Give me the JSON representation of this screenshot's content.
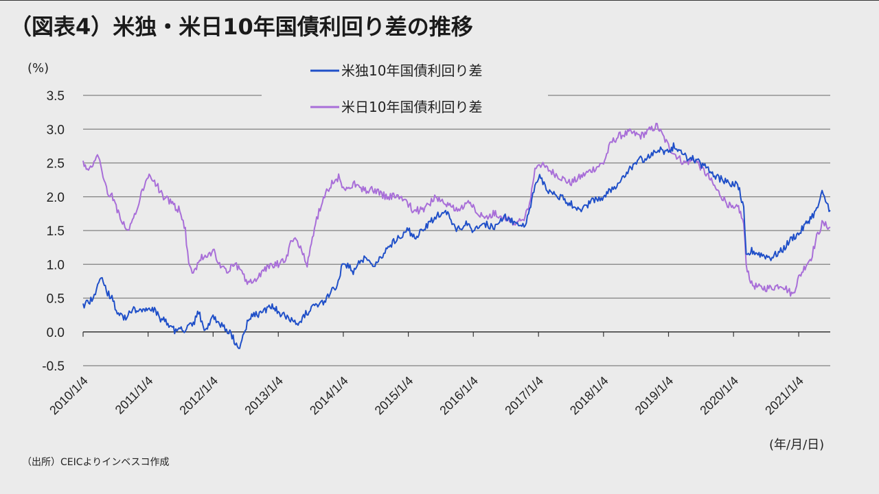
{
  "title": "（図表4）米独・米日10年国債利回り差の推移",
  "source": "（出所）CEICよりインベスコ作成",
  "chart_data": {
    "type": "line",
    "y_unit": "(%)",
    "x_unit": "(年/月/日)",
    "ylim": [
      -0.5,
      3.5
    ],
    "y_ticks": [
      "3.5",
      "3.0",
      "2.5",
      "2.0",
      "1.5",
      "1.0",
      "0.5",
      "0.0",
      "-0.5"
    ],
    "negative_tick_color": "#e02020",
    "x_ticks": [
      "2010/1/4",
      "2011/1/4",
      "2012/1/4",
      "2013/1/4",
      "2014/1/4",
      "2015/1/4",
      "2016/1/4",
      "2017/1/4",
      "2018/1/4",
      "2019/1/4",
      "2020/1/4",
      "2021/1/4"
    ],
    "x_range": [
      "2010/1/4",
      "2021/6/30"
    ],
    "grid": true,
    "legend_position": "top-center",
    "series": [
      {
        "name": "米独10年国債利回り差",
        "color": "#1f4fc8",
        "x": [
          "2010/1/4",
          "2010/3/1",
          "2010/4/15",
          "2010/5/15",
          "2010/6/15",
          "2010/7/15",
          "2010/9/1",
          "2010/10/15",
          "2010/12/1",
          "2011/1/4",
          "2011/2/15",
          "2011/3/15",
          "2011/5/1",
          "2011/6/15",
          "2011/8/1",
          "2011/9/15",
          "2011/10/15",
          "2011/11/15",
          "2011/12/15",
          "2012/1/4",
          "2012/2/15",
          "2012/4/1",
          "2012/6/1",
          "2012/7/20",
          "2012/9/1",
          "2012/10/15",
          "2012/12/1",
          "2013/1/4",
          "2013/3/1",
          "2013/5/1",
          "2013/6/1",
          "2013/7/15",
          "2013/9/1",
          "2013/10/15",
          "2013/12/1",
          "2014/1/4",
          "2014/3/1",
          "2014/5/1",
          "2014/7/1",
          "2014/9/1",
          "2014/11/1",
          "2015/1/4",
          "2015/2/15",
          "2015/4/15",
          "2015/6/1",
          "2015/8/1",
          "2015/10/1",
          "2015/12/1",
          "2016/1/4",
          "2016/3/1",
          "2016/5/1",
          "2016/7/1",
          "2016/9/1",
          "2016/10/15",
          "2016/11/15",
          "2016/12/15",
          "2017/1/4",
          "2017/3/1",
          "2017/5/1",
          "2017/7/1",
          "2017/9/1",
          "2017/11/1",
          "2018/1/4",
          "2018/2/15",
          "2018/4/1",
          "2018/6/1",
          "2018/8/1",
          "2018/10/1",
          "2018/11/1",
          "2019/1/4",
          "2019/2/1",
          "2019/4/1",
          "2019/6/1",
          "2019/8/15",
          "2019/10/1",
          "2019/12/1",
          "2020/1/4",
          "2020/2/1",
          "2020/3/1",
          "2020/3/15",
          "2020/4/15",
          "2020/6/1",
          "2020/8/1",
          "2020/10/1",
          "2020/12/1",
          "2021/1/4",
          "2021/2/15",
          "2021/3/15",
          "2021/4/15",
          "2021/5/15",
          "2021/6/30"
        ],
        "values": [
          0.4,
          0.5,
          0.8,
          0.6,
          0.5,
          0.3,
          0.2,
          0.35,
          0.3,
          0.35,
          0.3,
          0.2,
          0.1,
          0.0,
          0.05,
          0.1,
          0.3,
          0.05,
          0.1,
          0.25,
          0.1,
          0.0,
          -0.25,
          0.2,
          0.25,
          0.3,
          0.4,
          0.3,
          0.2,
          0.15,
          0.25,
          0.35,
          0.4,
          0.55,
          0.7,
          1.05,
          0.9,
          1.1,
          1.0,
          1.2,
          1.4,
          1.5,
          1.4,
          1.55,
          1.7,
          1.8,
          1.5,
          1.6,
          1.5,
          1.6,
          1.55,
          1.7,
          1.6,
          1.55,
          1.8,
          2.15,
          2.3,
          2.1,
          2.0,
          1.9,
          1.8,
          1.95,
          2.0,
          2.1,
          2.2,
          2.4,
          2.55,
          2.6,
          2.7,
          2.65,
          2.75,
          2.6,
          2.55,
          2.4,
          2.3,
          2.2,
          2.2,
          2.15,
          1.8,
          1.1,
          1.2,
          1.15,
          1.1,
          1.2,
          1.4,
          1.45,
          1.6,
          1.7,
          1.8,
          2.05,
          1.8
        ]
      },
      {
        "name": "米日10年国債利回り差",
        "color": "#a86ed8",
        "x": [
          "2010/1/4",
          "2010/2/15",
          "2010/4/1",
          "2010/5/15",
          "2010/6/15",
          "2010/8/1",
          "2010/9/15",
          "2010/11/1",
          "2010/12/15",
          "2011/1/4",
          "2011/2/15",
          "2011/4/1",
          "2011/5/15",
          "2011/7/1",
          "2011/8/1",
          "2011/8/20",
          "2011/9/15",
          "2011/11/1",
          "2012/1/4",
          "2012/2/15",
          "2012/3/15",
          "2012/5/1",
          "2012/6/1",
          "2012/7/20",
          "2012/9/1",
          "2012/10/15",
          "2012/12/1",
          "2013/1/4",
          "2013/2/15",
          "2013/3/15",
          "2013/4/15",
          "2013/5/15",
          "2013/6/15",
          "2013/8/1",
          "2013/9/15",
          "2013/11/1",
          "2013/12/15",
          "2014/1/4",
          "2014/3/1",
          "2014/5/1",
          "2014/7/1",
          "2014/9/1",
          "2014/11/1",
          "2015/1/4",
          "2015/2/1",
          "2015/4/1",
          "2015/6/1",
          "2015/8/1",
          "2015/10/1",
          "2015/12/1",
          "2016/1/4",
          "2016/3/1",
          "2016/5/1",
          "2016/7/1",
          "2016/9/1",
          "2016/10/15",
          "2016/11/15",
          "2016/12/15",
          "2017/1/4",
          "2017/3/1",
          "2017/5/1",
          "2017/7/1",
          "2017/9/1",
          "2017/11/1",
          "2018/1/4",
          "2018/2/15",
          "2018/4/1",
          "2018/6/1",
          "2018/8/1",
          "2018/10/1",
          "2018/11/1",
          "2019/1/4",
          "2019/2/1",
          "2019/4/1",
          "2019/6/1",
          "2019/8/15",
          "2019/10/1",
          "2019/12/1",
          "2020/1/4",
          "2020/2/1",
          "2020/3/1",
          "2020/3/15",
          "2020/4/15",
          "2020/6/1",
          "2020/8/1",
          "2020/10/1",
          "2020/12/1",
          "2021/1/4",
          "2021/2/15",
          "2021/3/15",
          "2021/4/15",
          "2021/5/15",
          "2021/6/30"
        ],
        "values": [
          2.5,
          2.4,
          2.6,
          2.1,
          2.0,
          1.7,
          1.5,
          1.8,
          2.2,
          2.3,
          2.2,
          2.0,
          1.9,
          1.8,
          1.5,
          1.0,
          0.9,
          1.1,
          1.2,
          1.0,
          0.9,
          1.0,
          0.95,
          0.7,
          0.8,
          0.9,
          1.0,
          1.0,
          1.1,
          1.3,
          1.4,
          1.2,
          1.0,
          1.6,
          2.0,
          2.2,
          2.3,
          2.1,
          2.2,
          2.1,
          2.1,
          2.0,
          2.0,
          1.9,
          1.8,
          1.8,
          2.0,
          1.9,
          1.8,
          1.9,
          1.85,
          1.7,
          1.75,
          1.7,
          1.6,
          1.65,
          1.9,
          2.4,
          2.5,
          2.4,
          2.3,
          2.2,
          2.3,
          2.4,
          2.5,
          2.8,
          2.9,
          2.95,
          2.9,
          3.0,
          3.05,
          2.75,
          2.65,
          2.5,
          2.55,
          2.3,
          2.1,
          1.9,
          1.8,
          1.85,
          1.6,
          1.0,
          0.7,
          0.65,
          0.65,
          0.7,
          0.55,
          0.8,
          1.0,
          1.1,
          1.4,
          1.6,
          1.55
        ]
      }
    ]
  }
}
